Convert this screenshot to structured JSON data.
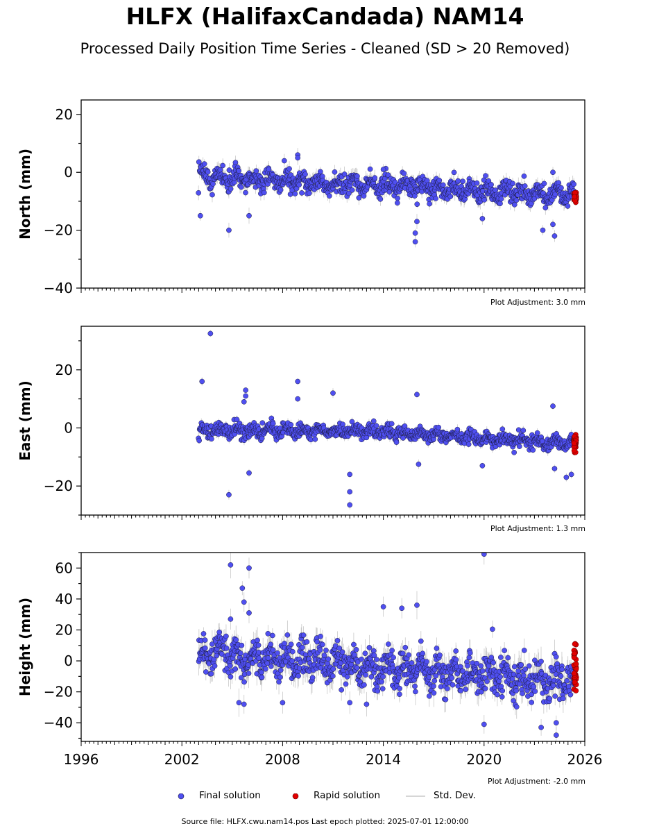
{
  "header": {
    "title": "HLFX (HalifaxCandada) NAM14",
    "subtitle": "Processed Daily Position Time Series - Cleaned (SD > 20 Removed)"
  },
  "adjustments": [
    "Plot Adjustment: 3.0 mm",
    "Plot Adjustment: 1.3 mm",
    "Plot Adjustment: -2.0 mm"
  ],
  "legend": {
    "final_label": "Final solution",
    "rapid_label": "Rapid solution",
    "std_label": "Std. Dev."
  },
  "footer": {
    "source_text": "Source file: HLFX.cwu.nam14.pos  Last epoch plotted: 2025-07-01 12:00:00"
  },
  "colors": {
    "final": "#4f4ff0",
    "final_edge": "#1a1a40",
    "rapid": "#e00000",
    "std": "#b0b0b0"
  },
  "chart_data": [
    {
      "type": "scatter",
      "ylabel": "North (mm)",
      "xlim": [
        1996,
        2026
      ],
      "ylim": [
        -40,
        25
      ],
      "yticks": [
        -40,
        -20,
        0,
        20
      ],
      "xtick_labels_shown": false,
      "final": {
        "start": 2003.0,
        "end": 2025.35,
        "trend": [
          [
            2003.0,
            -1.5
          ],
          [
            2025.35,
            -8.0
          ]
        ],
        "scatter": 2.5,
        "outliers": [
          [
            2003.1,
            -15
          ],
          [
            2004.8,
            -20
          ],
          [
            2008.9,
            6
          ],
          [
            2008.9,
            5
          ],
          [
            2008.1,
            4
          ],
          [
            2015.9,
            -24
          ],
          [
            2015.9,
            -21
          ],
          [
            2016.0,
            -17
          ],
          [
            2023.5,
            -20
          ],
          [
            2024.1,
            -18
          ],
          [
            2024.2,
            -22
          ],
          [
            2024.1,
            0
          ],
          [
            2014.0,
            1
          ],
          [
            2019.9,
            -16
          ],
          [
            2006.0,
            -15
          ]
        ]
      },
      "rapid": {
        "start": 2025.35,
        "end": 2025.5,
        "center": -8.5,
        "spread": 1.0
      }
    },
    {
      "type": "scatter",
      "ylabel": "East (mm)",
      "xlim": [
        1996,
        2026
      ],
      "ylim": [
        -30,
        35
      ],
      "yticks": [
        -20,
        0,
        20
      ],
      "xtick_labels_shown": false,
      "final": {
        "start": 2003.0,
        "end": 2025.35,
        "trend": [
          [
            2003.0,
            -1.0
          ],
          [
            2013.0,
            -1.0
          ],
          [
            2025.35,
            -5.5
          ]
        ],
        "scatter": 1.6,
        "outliers": [
          [
            2003.7,
            32.5
          ],
          [
            2003.2,
            16
          ],
          [
            2008.9,
            16
          ],
          [
            2008.9,
            10
          ],
          [
            2011.0,
            12
          ],
          [
            2016.0,
            11.5
          ],
          [
            2004.8,
            -23
          ],
          [
            2012.0,
            -16
          ],
          [
            2012.0,
            -22
          ],
          [
            2012.0,
            -26.5
          ],
          [
            2024.1,
            7.5
          ],
          [
            2024.2,
            -14
          ],
          [
            2025.2,
            -16
          ],
          [
            2024.9,
            -17
          ],
          [
            2005.8,
            13
          ],
          [
            2005.8,
            11
          ],
          [
            2005.7,
            9
          ],
          [
            2006.0,
            -15.5
          ],
          [
            2016.1,
            -12.5
          ],
          [
            2019.9,
            -13
          ]
        ]
      },
      "rapid": {
        "start": 2025.35,
        "end": 2025.5,
        "center": -5.5,
        "spread": 1.5
      }
    },
    {
      "type": "scatter",
      "ylabel": "Height (mm)",
      "xlim": [
        1996,
        2026
      ],
      "ylim": [
        -52,
        70
      ],
      "yticks": [
        -40,
        -20,
        0,
        20,
        40,
        60
      ],
      "xticks": [
        1996,
        2002,
        2008,
        2014,
        2020,
        2026
      ],
      "xtick_labels_shown": true,
      "final": {
        "start": 2003.0,
        "end": 2025.35,
        "trend": [
          [
            2003.0,
            4.0
          ],
          [
            2025.35,
            -14.0
          ]
        ],
        "scatter": 8.5,
        "outliers": [
          [
            2004.9,
            62
          ],
          [
            2006.0,
            60
          ],
          [
            2005.6,
            47
          ],
          [
            2005.7,
            38
          ],
          [
            2006.0,
            31
          ],
          [
            2004.9,
            27
          ],
          [
            2014.0,
            35
          ],
          [
            2015.1,
            34
          ],
          [
            2016.0,
            36
          ],
          [
            2020.0,
            69
          ],
          [
            2020.5,
            20.5
          ],
          [
            2024.3,
            -40
          ],
          [
            2024.3,
            -48
          ],
          [
            2023.4,
            -43
          ],
          [
            2020.0,
            -41
          ],
          [
            2005.4,
            -27
          ],
          [
            2005.7,
            -28
          ],
          [
            2008.0,
            -27
          ],
          [
            2012.0,
            -27
          ],
          [
            2013.0,
            -28
          ]
        ]
      },
      "rapid": {
        "start": 2025.35,
        "end": 2025.5,
        "center": -6.0,
        "spread": 9.0
      }
    }
  ]
}
